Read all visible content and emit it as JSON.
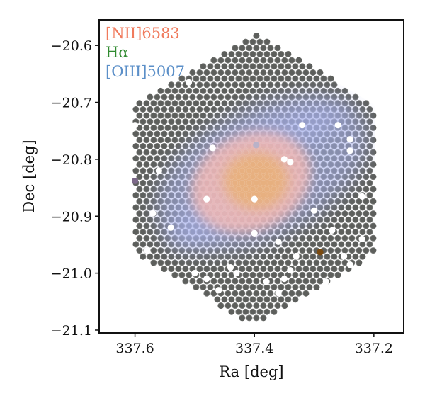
{
  "chart_data": {
    "type": "scatter",
    "xlabel": "Ra [deg]",
    "ylabel": "Dec [deg]",
    "xlim": [
      337.66,
      337.15
    ],
    "ylim": [
      -21.105,
      -20.555
    ],
    "x_inverted": true,
    "xticks": [
      337.6,
      337.4,
      337.2
    ],
    "xtick_labels": [
      "337.6",
      "337.4",
      "337.2"
    ],
    "yticks": [
      -20.6,
      -20.7,
      -20.8,
      -20.9,
      -21.0,
      -21.1
    ],
    "ytick_labels": [
      "−20.6",
      "−20.7",
      "−20.8",
      "−20.9",
      "−21.0",
      "−21.1"
    ],
    "grid": false,
    "legend_placement": "top-left",
    "legend": [
      {
        "label": "[NII]6583",
        "color": "#f07a5c"
      },
      {
        "label": "Hα",
        "color": "#2f8a2f"
      },
      {
        "label": "[OIII]5007",
        "color": "#5b8fc8"
      }
    ],
    "footprint": {
      "shape": "hexagon",
      "center_ra": 337.4,
      "center_dec": -20.835,
      "vertices": [
        [
          337.4,
          -20.578
        ],
        [
          337.198,
          -20.705
        ],
        [
          337.198,
          -20.965
        ],
        [
          337.4,
          -21.093
        ],
        [
          337.602,
          -20.965
        ],
        [
          337.602,
          -20.705
        ]
      ],
      "fiber_color": "#5d5f5c"
    },
    "emission": {
      "core_color": "#e8b07a",
      "ring_color": "#efb6b2",
      "halo_color": "#aab4f0",
      "core_center": [
        337.395,
        -20.835
      ],
      "core_radius_dec": 0.045,
      "ring_radius_dec": 0.08,
      "halo_extent_dec": 0.15
    },
    "masked_fibers": [
      [
        337.51,
        -20.665
      ],
      [
        337.6,
        -20.74
      ],
      [
        337.47,
        -20.78
      ],
      [
        337.56,
        -20.82
      ],
      [
        337.32,
        -20.74
      ],
      [
        337.35,
        -20.8
      ],
      [
        337.34,
        -20.805
      ],
      [
        337.26,
        -20.74
      ],
      [
        337.24,
        -20.765
      ],
      [
        337.24,
        -20.785
      ],
      [
        337.22,
        -20.865
      ],
      [
        337.19,
        -20.72
      ],
      [
        337.48,
        -20.87
      ],
      [
        337.4,
        -20.87
      ],
      [
        337.3,
        -20.89
      ],
      [
        337.57,
        -20.895
      ],
      [
        337.61,
        -20.92
      ],
      [
        337.54,
        -20.92
      ],
      [
        337.4,
        -20.93
      ],
      [
        337.27,
        -20.925
      ],
      [
        337.22,
        -20.94
      ],
      [
        337.58,
        -20.96
      ],
      [
        337.36,
        -20.945
      ],
      [
        337.33,
        -20.97
      ],
      [
        337.24,
        -20.985
      ],
      [
        337.44,
        -20.99
      ],
      [
        337.43,
        -21.0
      ],
      [
        337.5,
        -21.0
      ],
      [
        337.48,
        -21.01
      ],
      [
        337.38,
        -21.015
      ],
      [
        337.35,
        -21.01
      ],
      [
        337.28,
        -21.015
      ],
      [
        337.46,
        -21.03
      ],
      [
        337.36,
        -21.035
      ],
      [
        337.31,
        -21.05
      ],
      [
        337.5,
        -21.07
      ],
      [
        337.34,
        -20.995
      ],
      [
        337.25,
        -20.97
      ]
    ],
    "highlighted_fibers": [
      {
        "ra": 337.29,
        "dec": -20.963,
        "color": "#7a4a10"
      },
      {
        "ra": 337.397,
        "dec": -20.775,
        "color": "#b9b2c8"
      },
      {
        "ra": 337.6,
        "dec": -20.838,
        "color": "#7d6a8a"
      }
    ]
  }
}
